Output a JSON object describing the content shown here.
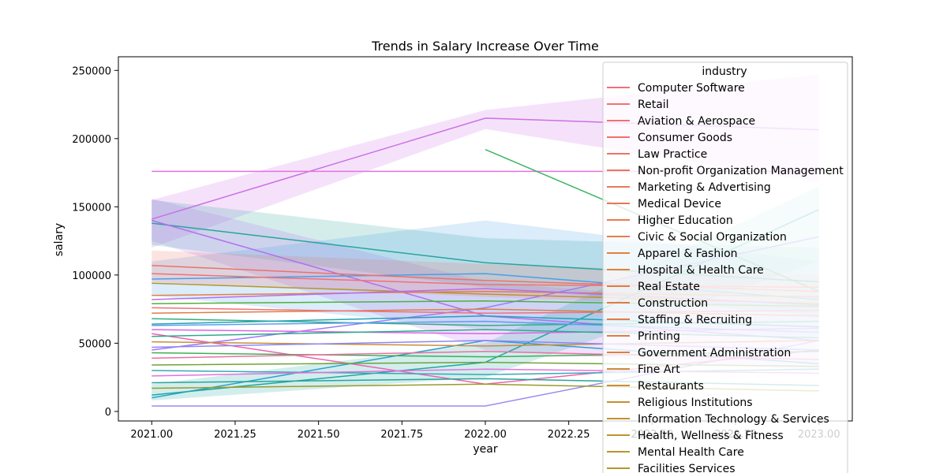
{
  "chart_data": {
    "type": "line",
    "title": "Trends in Salary Increase Over Time",
    "xlabel": "year",
    "ylabel": "salary",
    "xlim": [
      2020.9,
      2023.1
    ],
    "ylim": [
      -7000,
      260000
    ],
    "xticks": [
      2021.0,
      2021.25,
      2021.5,
      2021.75,
      2022.0,
      2022.25,
      2022.5,
      2022.75,
      2023.0
    ],
    "xtick_labels": [
      "2021.00",
      "2021.25",
      "2021.50",
      "2021.75",
      "2022.00",
      "2022.25",
      "2022.50",
      "2022.75",
      "2023.00"
    ],
    "yticks": [
      0,
      50000,
      100000,
      150000,
      200000,
      250000
    ],
    "ytick_labels": [
      "0",
      "50000",
      "100000",
      "150000",
      "200000",
      "250000"
    ],
    "grid": false,
    "legend": {
      "title": "industry",
      "placement": "upper right",
      "entries": [
        {
          "name": "Computer Software",
          "color": "#f0707a"
        },
        {
          "name": "Retail",
          "color": "#f07175"
        },
        {
          "name": "Aviation & Aerospace",
          "color": "#ef7170"
        },
        {
          "name": "Consumer Goods",
          "color": "#ef726a"
        },
        {
          "name": "Law Practice",
          "color": "#ee7366"
        },
        {
          "name": "Non-profit Organization Management",
          "color": "#ee7461"
        },
        {
          "name": "Marketing & Advertising",
          "color": "#ec765b"
        },
        {
          "name": "Medical Device",
          "color": "#eb7755"
        },
        {
          "name": "Higher Education",
          "color": "#e97a4f"
        },
        {
          "name": "Civic & Social Organization",
          "color": "#e67d48"
        },
        {
          "name": "Apparel & Fashion",
          "color": "#e3803f"
        },
        {
          "name": "Hospital & Health Care",
          "color": "#df843a"
        },
        {
          "name": "Real Estate",
          "color": "#e27c40"
        },
        {
          "name": "Construction",
          "color": "#e27a44"
        },
        {
          "name": "Staffing & Recruiting",
          "color": "#e07b46"
        },
        {
          "name": "Printing",
          "color": "#df7c48"
        },
        {
          "name": "Government Administration",
          "color": "#dc7f45"
        },
        {
          "name": "Fine Art",
          "color": "#cc8c3c"
        },
        {
          "name": "Restaurants",
          "color": "#c88e38"
        },
        {
          "name": "Religious Institutions",
          "color": "#c39035"
        },
        {
          "name": "Information Technology & Services",
          "color": "#bf9233"
        },
        {
          "name": "Health, Wellness & Fitness",
          "color": "#bb9431"
        },
        {
          "name": "Mental Health Care",
          "color": "#b8952f"
        },
        {
          "name": "Facilities Services",
          "color": "#b5972e"
        }
      ]
    },
    "series": [
      {
        "color": "#cc6fe8",
        "x": [
          2021.0,
          2022.0,
          2023.0
        ],
        "values": [
          141000,
          215000,
          206500
        ],
        "band_low": [
          120000,
          207000,
          168000
        ],
        "band_high": [
          155000,
          221000,
          247000
        ]
      },
      {
        "color": "#e272e0",
        "x": [
          2021.0,
          2022.0,
          2023.0
        ],
        "values": [
          176000,
          176000,
          176000
        ]
      },
      {
        "color": "#3cb561",
        "x": [
          2022.0,
          2023.0
        ],
        "values": [
          192000,
          88000
        ]
      },
      {
        "color": "#27a59b",
        "x": [
          2021.0,
          2022.0,
          2023.0
        ],
        "values": [
          138000,
          109000,
          95000
        ],
        "band_low": [
          122000,
          91000,
          70000
        ],
        "band_high": [
          155000,
          127000,
          120000
        ]
      },
      {
        "color": "#9a8cf2",
        "x": [
          2021.0,
          2022.0,
          2023.0
        ],
        "values": [
          4000,
          4000,
          52000
        ]
      },
      {
        "color": "#b66df0",
        "x": [
          2021.0,
          2022.0,
          2023.0
        ],
        "values": [
          140000,
          70000,
          52000
        ],
        "band_low": [
          125000,
          45000,
          30000
        ],
        "band_high": [
          156000,
          95000,
          75000
        ]
      },
      {
        "color": "#2e9fd0",
        "x": [
          2021.0,
          2022.0,
          2023.0
        ],
        "values": [
          10000,
          52000,
          35000
        ]
      },
      {
        "color": "#f05fb3",
        "x": [
          2021.0,
          2022.0,
          2023.0
        ],
        "values": [
          57000,
          20000,
          45000
        ]
      },
      {
        "color": "#1fa9a1",
        "x": [
          2021.0,
          2022.0,
          2023.0
        ],
        "values": [
          12000,
          36000,
          148000
        ],
        "band_low": [
          8000,
          25000,
          110000
        ],
        "band_high": [
          20000,
          50000,
          165000
        ]
      },
      {
        "color": "#a07af4",
        "x": [
          2021.0,
          2022.0,
          2023.0
        ],
        "values": [
          45000,
          76000,
          128000
        ]
      },
      {
        "color": "#4c9ee6",
        "x": [
          2021.0,
          2022.0,
          2023.0
        ],
        "values": [
          97000,
          101000,
          82000
        ],
        "band_low": [
          85000,
          60000,
          55000
        ],
        "band_high": [
          110000,
          140000,
          110000
        ]
      },
      {
        "color": "#e9736b",
        "x": [
          2021.0,
          2022.0,
          2023.0
        ],
        "values": [
          107000,
          96000,
          88000
        ],
        "band_low": [
          95000,
          84000,
          75000
        ],
        "band_high": [
          118000,
          108000,
          100000
        ]
      },
      {
        "color": "#f07175",
        "x": [
          2021.0,
          2022.0,
          2023.0
        ],
        "values": [
          101000,
          93000,
          91000
        ]
      },
      {
        "color": "#b5972e",
        "x": [
          2021.0,
          2022.0,
          2023.0
        ],
        "values": [
          94000,
          86000,
          79000
        ]
      },
      {
        "color": "#e3803f",
        "x": [
          2021.0,
          2022.0,
          2023.0
        ],
        "values": [
          85000,
          88000,
          84000
        ]
      },
      {
        "color": "#4fb03a",
        "x": [
          2021.0,
          2022.0,
          2023.0
        ],
        "values": [
          79000,
          81000,
          77000
        ]
      },
      {
        "color": "#dc7f45",
        "x": [
          2021.0,
          2022.0,
          2023.0
        ],
        "values": [
          72000,
          75000,
          70000
        ]
      },
      {
        "color": "#34ad7d",
        "x": [
          2021.0,
          2022.0,
          2023.0
        ],
        "values": [
          68000,
          63000,
          66000
        ]
      },
      {
        "color": "#5a9ef0",
        "x": [
          2021.0,
          2022.0,
          2023.0
        ],
        "values": [
          63000,
          66000,
          58000
        ]
      },
      {
        "color": "#d864e6",
        "x": [
          2021.0,
          2022.0,
          2023.0
        ],
        "values": [
          60000,
          57000,
          61000
        ]
      },
      {
        "color": "#2eaa8c",
        "x": [
          2021.0,
          2022.0,
          2023.0
        ],
        "values": [
          55000,
          60000,
          54000
        ]
      },
      {
        "color": "#c88e38",
        "x": [
          2021.0,
          2022.0,
          2023.0
        ],
        "values": [
          51000,
          48000,
          52000
        ]
      },
      {
        "color": "#8f86f3",
        "x": [
          2021.0,
          2022.0,
          2023.0
        ],
        "values": [
          47000,
          52000,
          45000
        ]
      },
      {
        "color": "#3fae55",
        "x": [
          2021.0,
          2022.0,
          2023.0
        ],
        "values": [
          43000,
          40000,
          44000
        ]
      },
      {
        "color": "#ee6ea2",
        "x": [
          2021.0,
          2022.0,
          2023.0
        ],
        "values": [
          39000,
          44000,
          38000
        ]
      },
      {
        "color": "#6ea33a",
        "x": [
          2021.0,
          2022.0,
          2023.0
        ],
        "values": [
          34000,
          36000,
          33000
        ]
      },
      {
        "color": "#36a9b5",
        "x": [
          2021.0,
          2022.0,
          2023.0
        ],
        "values": [
          30000,
          27000,
          31000
        ]
      },
      {
        "color": "#e272e0",
        "x": [
          2021.0,
          2022.0,
          2023.0
        ],
        "values": [
          26000,
          31000,
          28000
        ]
      },
      {
        "color": "#27a59b",
        "x": [
          2021.0,
          2022.0,
          2023.0
        ],
        "values": [
          21000,
          24000,
          19000
        ]
      },
      {
        "color": "#9a9a2c",
        "x": [
          2021.0,
          2022.0,
          2023.0
        ],
        "values": [
          17000,
          20000,
          15000
        ]
      },
      {
        "color": "#21a2b8",
        "x": [
          2021.0,
          2022.0,
          2023.0
        ],
        "values": [
          64000,
          70000,
          62000
        ]
      },
      {
        "color": "#f0707a",
        "x": [
          2021.0,
          2022.0,
          2023.0
        ],
        "values": [
          76000,
          72000,
          74000
        ]
      },
      {
        "color": "#b66df0",
        "x": [
          2021.0,
          2022.0,
          2023.0
        ],
        "values": [
          82000,
          90000,
          78000
        ]
      }
    ]
  }
}
